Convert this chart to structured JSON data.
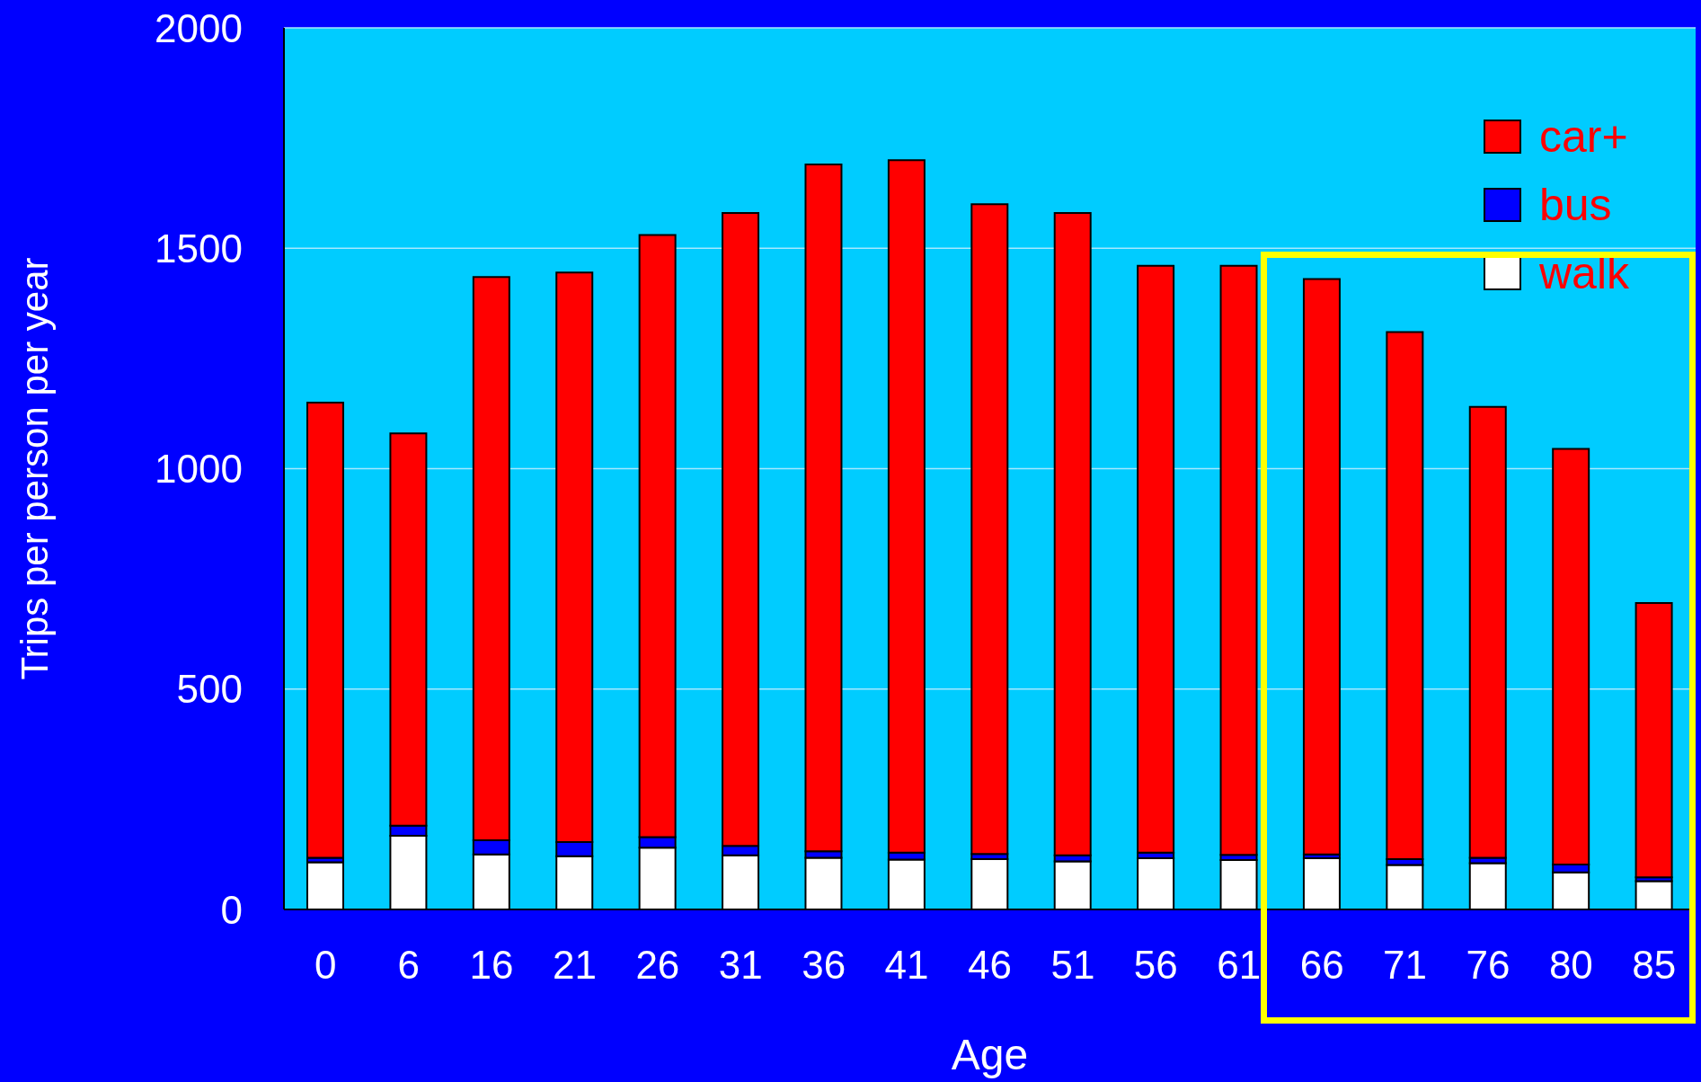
{
  "chart_data": {
    "type": "bar",
    "stacked": true,
    "xlabel": "Age",
    "ylabel": "Trips per person per year",
    "categories": [
      "0",
      "6",
      "16",
      "21",
      "26",
      "31",
      "36",
      "41",
      "46",
      "51",
      "56",
      "61",
      "66",
      "71",
      "76",
      "80",
      "85"
    ],
    "series": [
      {
        "name": "walk",
        "color": "#ffffff",
        "values": [
          107,
          167,
          125,
          121,
          140,
          123,
          117,
          113,
          114,
          109,
          116,
          112,
          116,
          101,
          105,
          84,
          64
        ]
      },
      {
        "name": "bus",
        "color": "#0000ff",
        "values": [
          10,
          23,
          32,
          32,
          24,
          21,
          15,
          16,
          12,
          14,
          13,
          12,
          9,
          13,
          12,
          18,
          9
        ]
      },
      {
        "name": "car+",
        "color": "#ff0000",
        "values": [
          1033,
          890,
          1278,
          1292,
          1366,
          1436,
          1558,
          1571,
          1474,
          1457,
          1331,
          1336,
          1305,
          1196,
          1023,
          943,
          622
        ]
      }
    ],
    "ylim": [
      0,
      2000
    ],
    "yticks": [
      0,
      500,
      1000,
      1500,
      2000
    ],
    "grid": "y",
    "legend": "top right"
  }
}
